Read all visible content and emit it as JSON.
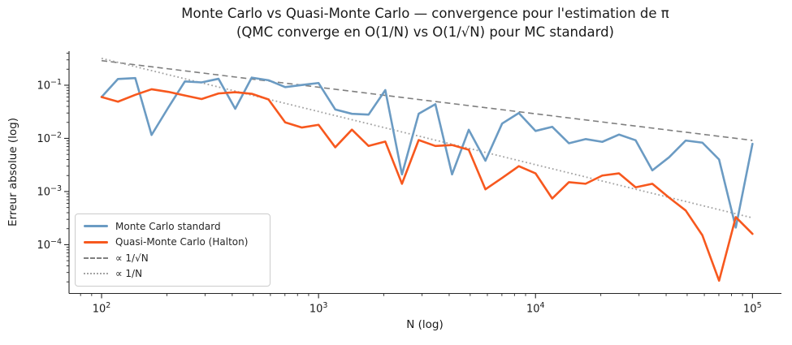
{
  "figure": {
    "background": "#ffffff",
    "text_color": "#1a1a1a",
    "axis_color": "#262626"
  },
  "chart_data": {
    "type": "line",
    "title": "Monte Carlo vs Quasi-Monte Carlo — convergence pour l'estimation de π",
    "subtitle": "(QMC converge en O(1/N) vs O(1/√N) pour MC standard)",
    "xlabel": "N (log)",
    "ylabel": "Erreur absolue (log)",
    "xscale": "log",
    "yscale": "log",
    "xlim": [
      70.8,
      136000
    ],
    "ylim": [
      1.21e-05,
      0.4375
    ],
    "grid": false,
    "legend_position": "lower left",
    "x_major_ticks": {
      "values": [
        100,
        1000,
        10000,
        100000
      ],
      "labels": [
        "10²",
        "10³",
        "10⁴",
        "10⁵"
      ]
    },
    "y_major_ticks": {
      "values": [
        0.1,
        0.01,
        0.001,
        0.0001
      ],
      "labels": [
        "10⁻¹",
        "10⁻²",
        "10⁻³",
        "10⁻⁴"
      ]
    },
    "x": [
      100,
      119,
      143,
      170,
      203,
      242,
      289,
      346,
      413,
      492,
      588,
      702,
      838,
      1000,
      1194,
      1425,
      1701,
      2031,
      2424,
      2894,
      3455,
      4125,
      4924,
      5878,
      7017,
      8377,
      10000,
      11938,
      14251,
      17013,
      20309,
      24245,
      28943,
      34551,
      41246,
      49239,
      58780,
      70170,
      83768,
      100000
    ],
    "series": [
      {
        "name": "Monte Carlo standard",
        "color": "#6B9BC3",
        "style": "solid",
        "values": [
          0.06,
          0.131,
          0.136,
          0.0116,
          0.038,
          0.118,
          0.113,
          0.132,
          0.036,
          0.139,
          0.124,
          0.092,
          0.101,
          0.11,
          0.035,
          0.029,
          0.028,
          0.081,
          0.0021,
          0.029,
          0.044,
          0.0021,
          0.0145,
          0.0038,
          0.019,
          0.03,
          0.0138,
          0.0165,
          0.0081,
          0.0097,
          0.0086,
          0.0118,
          0.0092,
          0.0025,
          0.0044,
          0.0091,
          0.0083,
          0.004,
          0.00021,
          0.0079
        ]
      },
      {
        "name": "Quasi-Monte Carlo (Halton)",
        "color": "#F7581E",
        "style": "solid",
        "values": [
          0.06,
          0.049,
          0.066,
          0.084,
          0.075,
          0.064,
          0.055,
          0.07,
          0.074,
          0.069,
          0.054,
          0.02,
          0.016,
          0.018,
          0.0068,
          0.0146,
          0.0072,
          0.0087,
          0.0014,
          0.0093,
          0.0072,
          0.0075,
          0.0061,
          0.0011,
          0.0018,
          0.003,
          0.0022,
          0.00074,
          0.0015,
          0.0014,
          0.002,
          0.0022,
          0.0012,
          0.0014,
          0.00077,
          0.00044,
          0.00015,
          2.1e-05,
          0.00033,
          0.00016
        ]
      },
      {
        "name": "∝ 1/√N",
        "color": "#7f7f7f",
        "style": "dashed",
        "reference": {
          "coefficient": 2.9,
          "power": -0.5,
          "n_start": 100,
          "n_end": 100000
        }
      },
      {
        "name": "∝ 1/N",
        "color": "#a3a3a3",
        "style": "dotted",
        "reference": {
          "coefficient": 32,
          "power": -1,
          "n_start": 100,
          "n_end": 100000
        }
      }
    ]
  }
}
